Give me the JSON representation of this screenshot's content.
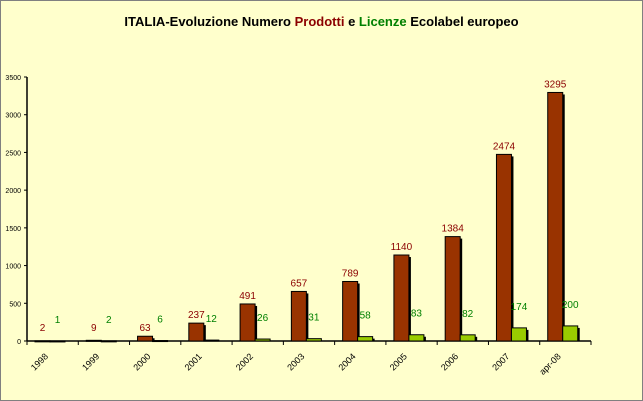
{
  "chart_data": {
    "type": "bar",
    "title_parts": [
      "ITALIA-Evoluzione Numero ",
      "Prodotti",
      " e  ",
      "Licenze",
      " Ecolabel europeo"
    ],
    "categories": [
      "1998",
      "1999",
      "2000",
      "2001",
      "2002",
      "2003",
      "2004",
      "2005",
      "2006",
      "2007",
      "apr-08"
    ],
    "series": [
      {
        "name": "Prodotti",
        "color": "#993300",
        "label_color": "#8B0000",
        "values": [
          2,
          9,
          63,
          237,
          491,
          657,
          789,
          1140,
          1384,
          2474,
          3295
        ]
      },
      {
        "name": "Licenze",
        "color": "#99CC00",
        "label_color": "#008000",
        "values": [
          1,
          2,
          6,
          12,
          26,
          31,
          58,
          83,
          82,
          174,
          200
        ]
      }
    ],
    "ylim": [
      0,
      3500
    ],
    "yticks": [
      0,
      500,
      1000,
      1500,
      2000,
      2500,
      3000,
      3500
    ],
    "grid": false,
    "legend": "none",
    "background": "#FFFFCC"
  }
}
